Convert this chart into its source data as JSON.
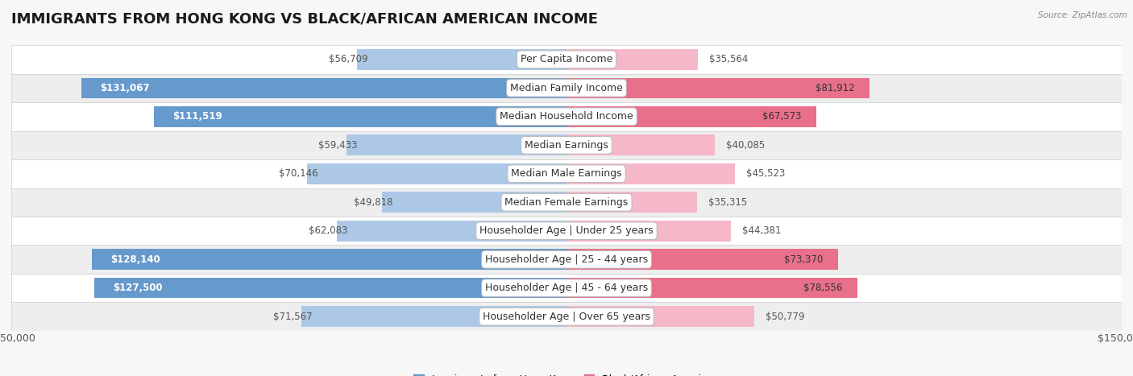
{
  "title": "IMMIGRANTS FROM HONG KONG VS BLACK/AFRICAN AMERICAN INCOME",
  "source": "Source: ZipAtlas.com",
  "categories": [
    "Per Capita Income",
    "Median Family Income",
    "Median Household Income",
    "Median Earnings",
    "Median Male Earnings",
    "Median Female Earnings",
    "Householder Age | Under 25 years",
    "Householder Age | 25 - 44 years",
    "Householder Age | 45 - 64 years",
    "Householder Age | Over 65 years"
  ],
  "hk_values": [
    56709,
    131067,
    111519,
    59433,
    70146,
    49818,
    62083,
    128140,
    127500,
    71567
  ],
  "baa_values": [
    35564,
    81912,
    67573,
    40085,
    45523,
    35315,
    44381,
    73370,
    78556,
    50779
  ],
  "hk_color_light": "#adc8e6",
  "hk_color_dark": "#6699cc",
  "baa_color_light": "#f5b8c8",
  "baa_color_dark": "#e8708a",
  "bar_height": 0.72,
  "xlim": 150000,
  "background_color": "#f7f7f7",
  "row_colors": [
    "#ffffff",
    "#eeeeee"
  ],
  "title_fontsize": 13,
  "label_fontsize": 9,
  "value_fontsize": 8.5,
  "legend_fontsize": 9,
  "hk_inside_threshold": 90000,
  "baa_inside_threshold": 60000
}
